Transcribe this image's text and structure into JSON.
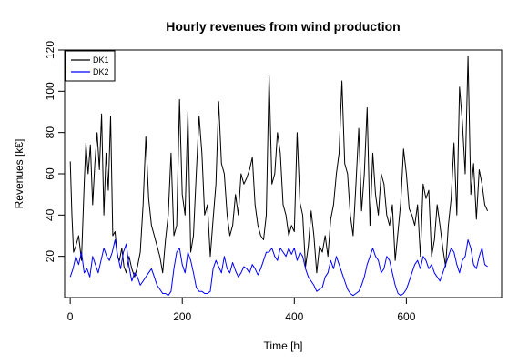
{
  "chart_data": {
    "type": "line",
    "title": "Hourly revenues from wind production",
    "xlabel": "Time [h]",
    "ylabel": "Revenues [k€]",
    "xlim": [
      -10,
      770
    ],
    "ylim": [
      0,
      120
    ],
    "x_ticks": [
      0,
      200,
      400,
      600
    ],
    "y_ticks": [
      20,
      40,
      60,
      80,
      100,
      120
    ],
    "grid": false,
    "legend_position": "top-left",
    "series": [
      {
        "name": "DK1",
        "color": "#000000",
        "x": [
          0,
          3,
          6,
          10,
          15,
          20,
          25,
          28,
          32,
          36,
          40,
          44,
          48,
          52,
          56,
          60,
          64,
          68,
          72,
          76,
          80,
          84,
          88,
          92,
          96,
          100,
          105,
          110,
          115,
          120,
          125,
          130,
          135,
          140,
          145,
          150,
          155,
          160,
          165,
          170,
          175,
          180,
          185,
          190,
          195,
          200,
          205,
          210,
          215,
          220,
          225,
          230,
          235,
          240,
          245,
          250,
          255,
          260,
          265,
          270,
          275,
          280,
          285,
          290,
          295,
          300,
          305,
          310,
          315,
          320,
          325,
          330,
          335,
          340,
          345,
          350,
          355,
          360,
          365,
          370,
          375,
          380,
          385,
          390,
          395,
          400,
          405,
          410,
          415,
          420,
          425,
          430,
          435,
          440,
          445,
          450,
          455,
          460,
          465,
          470,
          475,
          480,
          485,
          490,
          495,
          500,
          505,
          510,
          515,
          520,
          525,
          530,
          535,
          540,
          545,
          550,
          555,
          560,
          565,
          570,
          575,
          580,
          585,
          590,
          595,
          600,
          605,
          610,
          615,
          620,
          625,
          630,
          635,
          640,
          645,
          650,
          655,
          660,
          665,
          670,
          675,
          680,
          685,
          690,
          695,
          700,
          705,
          710,
          715,
          720,
          725,
          730,
          735,
          740,
          745
        ],
        "values": [
          66,
          40,
          22,
          25,
          30,
          18,
          55,
          75,
          60,
          74,
          45,
          65,
          80,
          62,
          89,
          40,
          70,
          52,
          88,
          30,
          32,
          20,
          18,
          24,
          15,
          12,
          20,
          14,
          10,
          15,
          22,
          45,
          78,
          48,
          35,
          30,
          25,
          20,
          12,
          28,
          40,
          70,
          30,
          35,
          96,
          50,
          40,
          90,
          22,
          30,
          60,
          88,
          70,
          40,
          45,
          20,
          38,
          55,
          95,
          65,
          60,
          40,
          30,
          35,
          50,
          40,
          60,
          55,
          58,
          62,
          68,
          45,
          35,
          30,
          28,
          40,
          108,
          55,
          60,
          80,
          70,
          45,
          40,
          30,
          35,
          32,
          80,
          46,
          40,
          15,
          25,
          42,
          30,
          12,
          25,
          22,
          30,
          20,
          38,
          45,
          60,
          70,
          105,
          65,
          60,
          40,
          30,
          55,
          82,
          42,
          60,
          92,
          35,
          70,
          50,
          40,
          60,
          55,
          40,
          35,
          45,
          18,
          32,
          46,
          72,
          60,
          43,
          40,
          35,
          45,
          20,
          55,
          48,
          52,
          20,
          28,
          45,
          35,
          24,
          15,
          35,
          48,
          75,
          40,
          102,
          85,
          60,
          117,
          50,
          65,
          38,
          62,
          55,
          45,
          42
        ]
      },
      {
        "name": "DK2",
        "color": "#0000ff",
        "x": [
          0,
          5,
          10,
          15,
          20,
          25,
          30,
          35,
          40,
          45,
          50,
          55,
          60,
          65,
          70,
          75,
          80,
          85,
          90,
          95,
          100,
          105,
          110,
          115,
          120,
          125,
          130,
          135,
          140,
          145,
          150,
          155,
          160,
          165,
          170,
          175,
          180,
          185,
          190,
          195,
          200,
          205,
          210,
          215,
          220,
          225,
          230,
          235,
          240,
          245,
          250,
          255,
          260,
          265,
          270,
          275,
          280,
          285,
          290,
          295,
          300,
          305,
          310,
          315,
          320,
          325,
          330,
          335,
          340,
          345,
          350,
          355,
          360,
          365,
          370,
          375,
          380,
          385,
          390,
          395,
          400,
          405,
          410,
          415,
          420,
          425,
          430,
          435,
          440,
          445,
          450,
          455,
          460,
          465,
          470,
          475,
          480,
          485,
          490,
          495,
          500,
          505,
          510,
          515,
          520,
          525,
          530,
          535,
          540,
          545,
          550,
          555,
          560,
          565,
          570,
          575,
          580,
          585,
          590,
          595,
          600,
          605,
          610,
          615,
          620,
          625,
          630,
          635,
          640,
          645,
          650,
          655,
          660,
          665,
          670,
          675,
          680,
          685,
          690,
          695,
          700,
          705,
          710,
          715,
          720,
          725,
          730,
          735,
          740,
          745
        ],
        "values": [
          10,
          14,
          20,
          16,
          22,
          12,
          14,
          10,
          20,
          16,
          12,
          18,
          24,
          20,
          18,
          22,
          28,
          20,
          14,
          22,
          26,
          15,
          8,
          12,
          10,
          6,
          8,
          10,
          12,
          14,
          10,
          6,
          4,
          2,
          2,
          1,
          3,
          14,
          22,
          24,
          16,
          12,
          22,
          18,
          12,
          5,
          3,
          3,
          2,
          2,
          3,
          14,
          18,
          15,
          12,
          20,
          14,
          12,
          17,
          13,
          10,
          12,
          15,
          14,
          12,
          16,
          14,
          11,
          14,
          18,
          22,
          22,
          24,
          20,
          18,
          24,
          22,
          20,
          24,
          21,
          24,
          18,
          22,
          20,
          14,
          10,
          8,
          6,
          3,
          4,
          5,
          10,
          12,
          18,
          14,
          20,
          16,
          12,
          8,
          4,
          2,
          1,
          2,
          3,
          6,
          10,
          16,
          20,
          24,
          20,
          18,
          12,
          14,
          20,
          18,
          12,
          6,
          2,
          1,
          2,
          4,
          8,
          12,
          16,
          18,
          14,
          20,
          18,
          14,
          16,
          12,
          10,
          8,
          12,
          16,
          20,
          24,
          22,
          16,
          12,
          18,
          20,
          28,
          24,
          16,
          14,
          20,
          24,
          16,
          15
        ]
      }
    ]
  }
}
